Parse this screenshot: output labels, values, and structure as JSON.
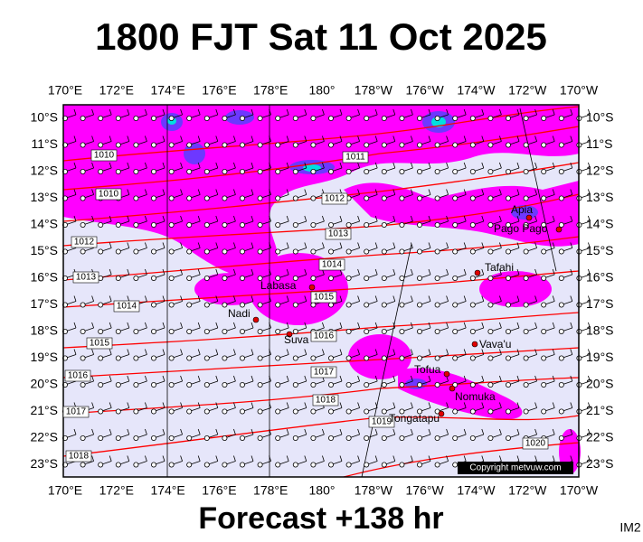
{
  "title": "1800 FJT Sat 11 Oct 2025",
  "lon_labels": [
    "170°E",
    "172°E",
    "174°E",
    "176°E",
    "178°E",
    "180°",
    "178°W",
    "176°W",
    "174°W",
    "172°W",
    "170°W"
  ],
  "lat_labels": [
    "10°S",
    "11°S",
    "12°S",
    "13°S",
    "14°S",
    "15°S",
    "16°S",
    "17°S",
    "18°S",
    "19°S",
    "20°S",
    "21°S",
    "22°S",
    "23°S"
  ],
  "isobar_labels": [
    1010,
    1011,
    1012,
    1013,
    1014,
    1015,
    1016,
    1017,
    1018,
    1019,
    1020,
    1010,
    1012,
    1013,
    1014,
    1015,
    1016,
    1017,
    1018
  ],
  "places": [
    "Apia",
    "Pago Pago",
    "Tafahi",
    "Labasa",
    "Nadi",
    "Suva",
    "Vava'u",
    "Tofua",
    "Nomuka",
    "Tongatapu"
  ],
  "copyright": "Copyright metvuw.com",
  "footer": "Forecast +138 hr",
  "corner_tag": "IM2"
}
